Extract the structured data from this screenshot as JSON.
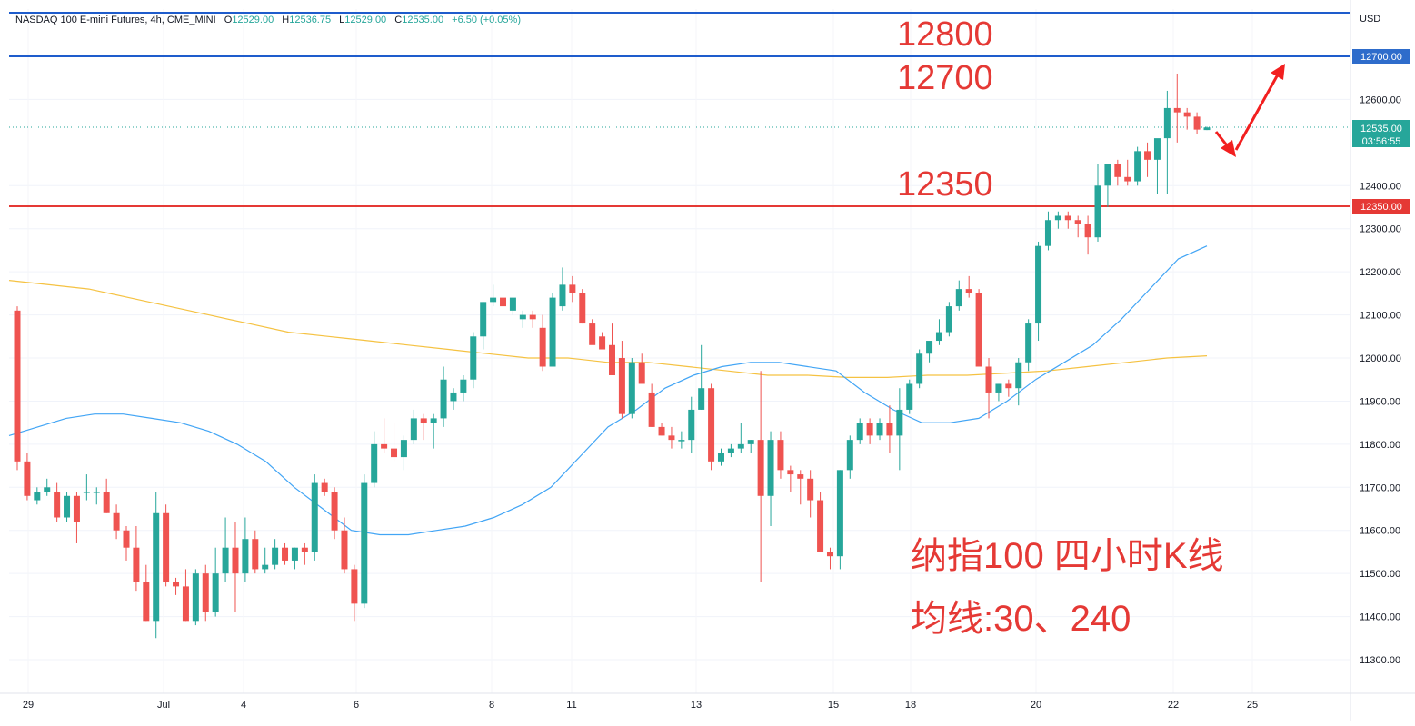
{
  "header": {
    "symbol": "NASDAQ 100 E-mini Futures, 4h, CME_MINI",
    "open_label": "O",
    "open": "12529.00",
    "high_label": "H",
    "high": "12536.75",
    "low_label": "L",
    "low": "12529.00",
    "close_label": "C",
    "close": "12535.00",
    "change": "+6.50 (+0.05%)"
  },
  "colors": {
    "up": "#26a69a",
    "down": "#ef5350",
    "ma30": "#42a5f5",
    "ma240": "#f5c242",
    "resistance_line": "#1e5ccc",
    "support_line": "#e53935",
    "annotation": "#e53935",
    "arrow": "#f21f1f",
    "price_tag": "#2e6ccb",
    "last_tag": "#26a69a"
  },
  "price_axis": {
    "currency": "USD",
    "ticks": [
      "12600.00",
      "12400.00",
      "12300.00",
      "12200.00",
      "12100.00",
      "12000.00",
      "11900.00",
      "11800.00",
      "11700.00",
      "11600.00",
      "11500.00",
      "11400.00",
      "11300.00"
    ],
    "tags": [
      {
        "text": "12700.00",
        "kind": "resistance"
      },
      {
        "text": "12535.00",
        "kind": "last"
      },
      {
        "text": "03:56:55",
        "kind": "countdown"
      },
      {
        "text": "12350.00",
        "kind": "support"
      }
    ]
  },
  "time_axis": {
    "labels": [
      "29",
      "Jul",
      "4",
      "6",
      "8",
      "11",
      "13",
      "15",
      "18",
      "20",
      "22",
      "25"
    ]
  },
  "annotations": {
    "level_12800": "12800",
    "level_12700": "12700",
    "level_12350": "12350",
    "title_line1": "纳指100 四小时K线",
    "title_line2": "均线:30、240"
  },
  "chart_data": {
    "type": "candlestick",
    "symbol": "NASDAQ 100 E-mini Futures",
    "interval": "4h",
    "exchange": "CME_MINI",
    "ylim": [
      11250,
      12900
    ],
    "price_axis_ticks": [
      11300,
      11400,
      11500,
      11600,
      11700,
      11800,
      11900,
      12000,
      12100,
      12200,
      12300,
      12400,
      12600
    ],
    "x_labels": [
      "29",
      "Jul",
      "4",
      "6",
      "8",
      "11",
      "13",
      "15",
      "18",
      "20",
      "22",
      "25"
    ],
    "horizontal_levels": [
      {
        "price": 12800,
        "label": "12800"
      },
      {
        "price": 12700,
        "label": "12700"
      },
      {
        "price": 12350,
        "label": "12350"
      }
    ],
    "candles_ohlc": [
      [
        12110,
        12120,
        11740,
        11760
      ],
      [
        11760,
        11780,
        11670,
        11680
      ],
      [
        11670,
        11700,
        11660,
        11690
      ],
      [
        11690,
        11720,
        11680,
        11700
      ],
      [
        11690,
        11710,
        11620,
        11630
      ],
      [
        11630,
        11690,
        11620,
        11680
      ],
      [
        11680,
        11690,
        11570,
        11620
      ],
      [
        11690,
        11730,
        11670,
        11690
      ],
      [
        11690,
        11700,
        11660,
        11690
      ],
      [
        11690,
        11720,
        11640,
        11640
      ],
      [
        11640,
        11660,
        11580,
        11600
      ],
      [
        11600,
        11610,
        11530,
        11560
      ],
      [
        11560,
        11610,
        11460,
        11480
      ],
      [
        11480,
        11520,
        11390,
        11390
      ],
      [
        11390,
        11690,
        11350,
        11640
      ],
      [
        11640,
        11660,
        11470,
        11480
      ],
      [
        11480,
        11490,
        11450,
        11470
      ],
      [
        11470,
        11510,
        11390,
        11390
      ],
      [
        11390,
        11510,
        11380,
        11500
      ],
      [
        11500,
        11520,
        11390,
        11410
      ],
      [
        11410,
        11560,
        11400,
        11500
      ],
      [
        11500,
        11630,
        11480,
        11560
      ],
      [
        11560,
        11620,
        11410,
        11500
      ],
      [
        11500,
        11630,
        11480,
        11580
      ],
      [
        11580,
        11600,
        11500,
        11510
      ],
      [
        11510,
        11560,
        11500,
        11520
      ],
      [
        11520,
        11580,
        11510,
        11560
      ],
      [
        11560,
        11570,
        11520,
        11530
      ],
      [
        11530,
        11560,
        11510,
        11560
      ],
      [
        11560,
        11570,
        11520,
        11550
      ],
      [
        11550,
        11730,
        11530,
        11710
      ],
      [
        11710,
        11720,
        11680,
        11690
      ],
      [
        11690,
        11700,
        11580,
        11600
      ],
      [
        11600,
        11630,
        11500,
        11510
      ],
      [
        11510,
        11520,
        11390,
        11430
      ],
      [
        11430,
        11730,
        11420,
        11710
      ],
      [
        11710,
        11830,
        11700,
        11800
      ],
      [
        11800,
        11860,
        11780,
        11790
      ],
      [
        11790,
        11850,
        11760,
        11770
      ],
      [
        11770,
        11820,
        11740,
        11810
      ],
      [
        11810,
        11880,
        11800,
        11860
      ],
      [
        11860,
        11870,
        11810,
        11850
      ],
      [
        11850,
        11870,
        11790,
        11860
      ],
      [
        11860,
        11980,
        11840,
        11950
      ],
      [
        11900,
        11930,
        11880,
        11920
      ],
      [
        11920,
        11960,
        11900,
        11950
      ],
      [
        11950,
        12060,
        11930,
        12050
      ],
      [
        12050,
        12130,
        12020,
        12130
      ],
      [
        12130,
        12170,
        12120,
        12140
      ],
      [
        12140,
        12150,
        12110,
        12120
      ],
      [
        12110,
        12140,
        12100,
        12140
      ],
      [
        12090,
        12110,
        12070,
        12100
      ],
      [
        12100,
        12110,
        12070,
        12090
      ],
      [
        12070,
        12100,
        11970,
        11980
      ],
      [
        11980,
        12150,
        11990,
        12140
      ],
      [
        12120,
        12210,
        12110,
        12170
      ],
      [
        12170,
        12190,
        12130,
        12150
      ],
      [
        12150,
        12160,
        12080,
        12080
      ],
      [
        12080,
        12090,
        12050,
        12030
      ],
      [
        12050,
        12060,
        12040,
        12020
      ],
      [
        12030,
        12080,
        11960,
        11960
      ],
      [
        12000,
        12040,
        11860,
        11870
      ],
      [
        11870,
        12000,
        11860,
        11990
      ],
      [
        11990,
        12010,
        11960,
        11940
      ],
      [
        11920,
        11940,
        11840,
        11840
      ],
      [
        11840,
        11850,
        11820,
        11820
      ],
      [
        11820,
        11840,
        11790,
        11810
      ],
      [
        11810,
        11830,
        11790,
        11810
      ],
      [
        11810,
        11910,
        11780,
        11880
      ],
      [
        11880,
        12030,
        11880,
        11930
      ],
      [
        11930,
        11940,
        11740,
        11760
      ],
      [
        11760,
        11790,
        11750,
        11780
      ],
      [
        11780,
        11800,
        11770,
        11790
      ],
      [
        11790,
        11850,
        11780,
        11800
      ],
      [
        11800,
        11810,
        11780,
        11810
      ],
      [
        11810,
        11970,
        11480,
        11680
      ],
      [
        11680,
        11830,
        11610,
        11810
      ],
      [
        11810,
        11830,
        11720,
        11740
      ],
      [
        11740,
        11750,
        11690,
        11730
      ],
      [
        11730,
        11740,
        11660,
        11720
      ],
      [
        11720,
        11740,
        11630,
        11670
      ],
      [
        11670,
        11690,
        11550,
        11550
      ],
      [
        11550,
        11560,
        11510,
        11540
      ],
      [
        11540,
        11740,
        11510,
        11740
      ],
      [
        11740,
        11820,
        11720,
        11810
      ],
      [
        11810,
        11860,
        11800,
        11850
      ],
      [
        11850,
        11860,
        11800,
        11820
      ],
      [
        11820,
        11860,
        11810,
        11850
      ],
      [
        11850,
        11890,
        11780,
        11820
      ],
      [
        11820,
        11930,
        11740,
        11880
      ],
      [
        11880,
        11950,
        11870,
        11940
      ],
      [
        11940,
        12020,
        11930,
        12010
      ],
      [
        12010,
        12030,
        11990,
        12040
      ],
      [
        12040,
        12090,
        12030,
        12060
      ],
      [
        12060,
        12130,
        12050,
        12120
      ],
      [
        12120,
        12180,
        12110,
        12160
      ],
      [
        12160,
        12190,
        12140,
        12150
      ],
      [
        12150,
        12160,
        12000,
        11980
      ],
      [
        11980,
        12000,
        11860,
        11920
      ],
      [
        11920,
        11940,
        11900,
        11940
      ],
      [
        11940,
        11950,
        11910,
        11930
      ],
      [
        11930,
        12000,
        11890,
        11990
      ],
      [
        11990,
        12090,
        11970,
        12080
      ],
      [
        12080,
        12270,
        12040,
        12260
      ],
      [
        12260,
        12340,
        12250,
        12320
      ],
      [
        12320,
        12340,
        12300,
        12330
      ],
      [
        12330,
        12340,
        12300,
        12320
      ],
      [
        12320,
        12330,
        12280,
        12310
      ],
      [
        12310,
        12330,
        12240,
        12280
      ],
      [
        12280,
        12450,
        12270,
        12400
      ],
      [
        12400,
        12440,
        12350,
        12450
      ],
      [
        12450,
        12460,
        12400,
        12420
      ],
      [
        12420,
        12460,
        12400,
        12410
      ],
      [
        12410,
        12490,
        12400,
        12480
      ],
      [
        12480,
        12500,
        12420,
        12460
      ],
      [
        12460,
        12500,
        12380,
        12510
      ],
      [
        12510,
        12620,
        12380,
        12580
      ],
      [
        12580,
        12660,
        12500,
        12570
      ],
      [
        12570,
        12580,
        12530,
        12560
      ],
      [
        12560,
        12570,
        12520,
        12530
      ],
      [
        12529,
        12536.75,
        12529,
        12535
      ]
    ],
    "ma30_approx": [
      11820,
      11840,
      11860,
      11870,
      11870,
      11860,
      11850,
      11830,
      11800,
      11760,
      11700,
      11650,
      11600,
      11590,
      11590,
      11600,
      11610,
      11630,
      11660,
      11700,
      11770,
      11840,
      11880,
      11930,
      11960,
      11980,
      11990,
      11990,
      11980,
      11970,
      11920,
      11880,
      11850,
      11850,
      11860,
      11900,
      11950,
      11990,
      12030,
      12090,
      12160,
      12230,
      12260
    ],
    "ma240_approx": [
      12180,
      12170,
      12160,
      12140,
      12120,
      12100,
      12080,
      12060,
      12050,
      12040,
      12030,
      12020,
      12010,
      12000,
      12000,
      11990,
      11990,
      11980,
      11970,
      11960,
      11960,
      11955,
      11955,
      11960,
      11960,
      11965,
      11970,
      11980,
      11990,
      12000,
      12005
    ],
    "forecast_arrows": [
      {
        "from": 12535,
        "to": 12480,
        "direction": "down"
      },
      {
        "from": 12480,
        "to": 12740,
        "direction": "up"
      }
    ]
  }
}
